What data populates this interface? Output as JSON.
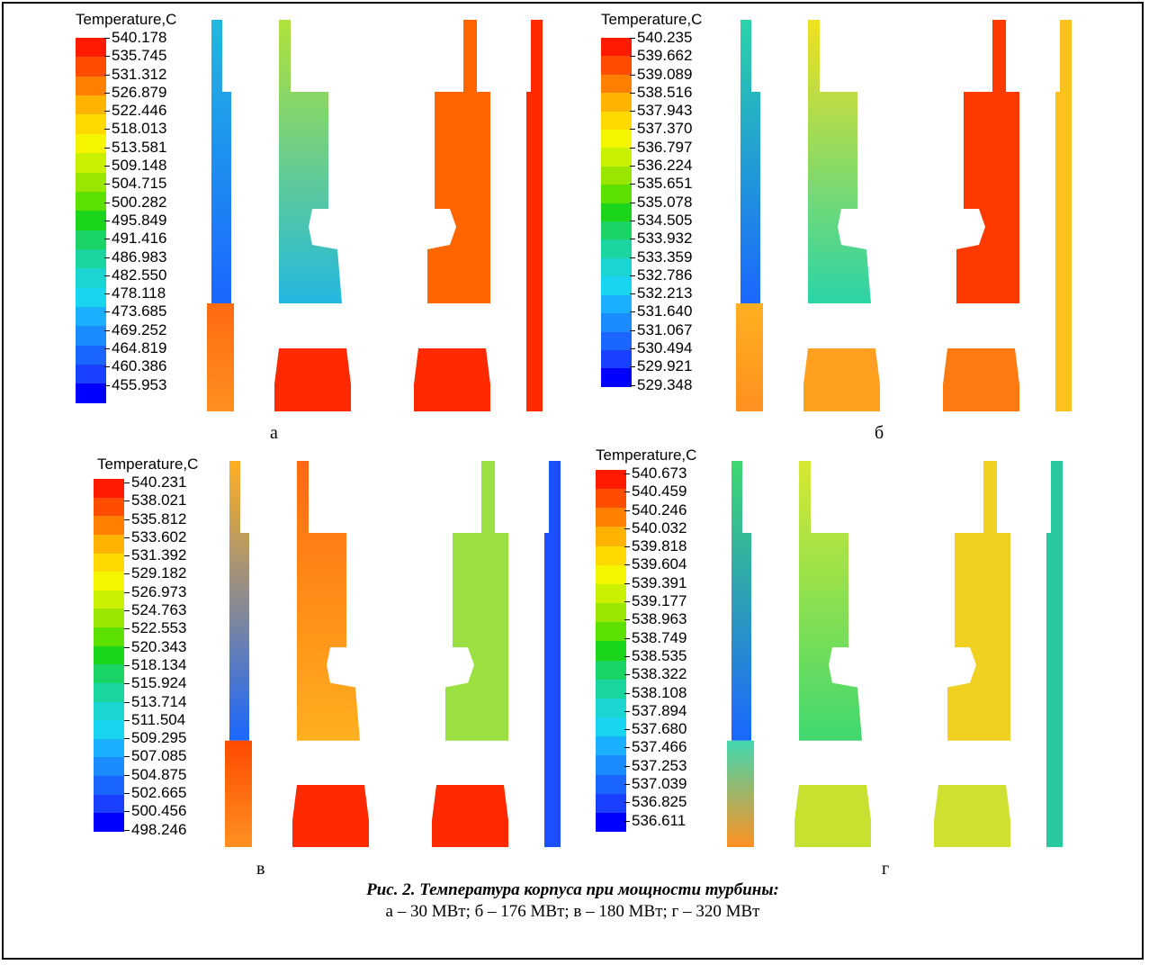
{
  "panels": [
    {
      "id": "a",
      "letter": "а",
      "legend_title": "Temperature,C",
      "levels": [
        "540.178",
        "535.745",
        "531.312",
        "526.879",
        "522.446",
        "518.013",
        "513.581",
        "509.148",
        "504.715",
        "500.282",
        "495.849",
        "491.416",
        "486.983",
        "482.550",
        "478.118",
        "473.685",
        "469.252",
        "464.819",
        "460.386",
        "455.953"
      ],
      "fills": {
        "s1": "#22b8e0",
        "s2": "#b0e23a",
        "s3": "#ff6600",
        "s4": "#ff2a00",
        "b1": "#ff2a00",
        "b2": "#ff2a00",
        "lower_outer": "#ff6a10"
      }
    },
    {
      "id": "b",
      "letter": "б",
      "legend_title": "Temperature,C",
      "levels": [
        "540.235",
        "539.662",
        "539.089",
        "538.516",
        "537.943",
        "537.370",
        "536.797",
        "536.224",
        "535.651",
        "535.078",
        "534.505",
        "533.932",
        "533.359",
        "532.786",
        "532.213",
        "531.640",
        "531.067",
        "530.494",
        "529.921",
        "529.348"
      ],
      "fills": {
        "s1": "#2ad4a8",
        "s2": "#f2e020",
        "s3": "#ff3a00",
        "s4": "#ffc020",
        "b1": "#ffa020",
        "b2": "#ff7a10",
        "lower_outer": "#ffb020"
      }
    },
    {
      "id": "c",
      "letter": "в",
      "legend_title": "Temperature,C",
      "levels": [
        "540.231",
        "538.021",
        "535.812",
        "533.602",
        "531.392",
        "529.182",
        "526.973",
        "524.763",
        "522.553",
        "520.343",
        "518.134",
        "515.924",
        "513.714",
        "511.504",
        "509.295",
        "507.085",
        "504.875",
        "502.665",
        "500.456",
        "498.246"
      ],
      "fills": {
        "s1": "#ffb020",
        "s2": "#ff6a10",
        "s3": "#9ae040",
        "s4": "#1a50ff",
        "b1": "#ff2a00",
        "b2": "#ff2a00",
        "lower_outer": "#ff4a00"
      }
    },
    {
      "id": "d",
      "letter": "г",
      "legend_title": "Temperature,C",
      "levels": [
        "540.673",
        "540.459",
        "540.246",
        "540.032",
        "539.818",
        "539.604",
        "539.391",
        "539.177",
        "538.963",
        "538.749",
        "538.535",
        "538.322",
        "538.108",
        "537.894",
        "537.680",
        "537.466",
        "537.253",
        "537.039",
        "536.825",
        "536.611"
      ],
      "fills": {
        "s1": "#40d870",
        "s2": "#d8e830",
        "s3": "#f0d020",
        "s4": "#28c8a0",
        "b1": "#c8e030",
        "b2": "#d0e030",
        "lower_outer": "#40d8b0"
      }
    }
  ],
  "colormap": [
    "#ff1a00",
    "#ff4d00",
    "#ff8000",
    "#ffb300",
    "#ffd900",
    "#f5f500",
    "#c8f000",
    "#9ae600",
    "#5ce000",
    "#1ad51a",
    "#1ad566",
    "#1ad5a0",
    "#1ad5d0",
    "#1ad5f0",
    "#1ab0ff",
    "#1a8cff",
    "#1a66ff",
    "#1a40ff",
    "#0000ff"
  ],
  "caption": {
    "title": "Рис. 2. Температура корпуса при мощности турбины:",
    "subtitle": "а – 30 МВт; б – 176 МВт; в – 180 МВт; г – 320 МВт"
  }
}
